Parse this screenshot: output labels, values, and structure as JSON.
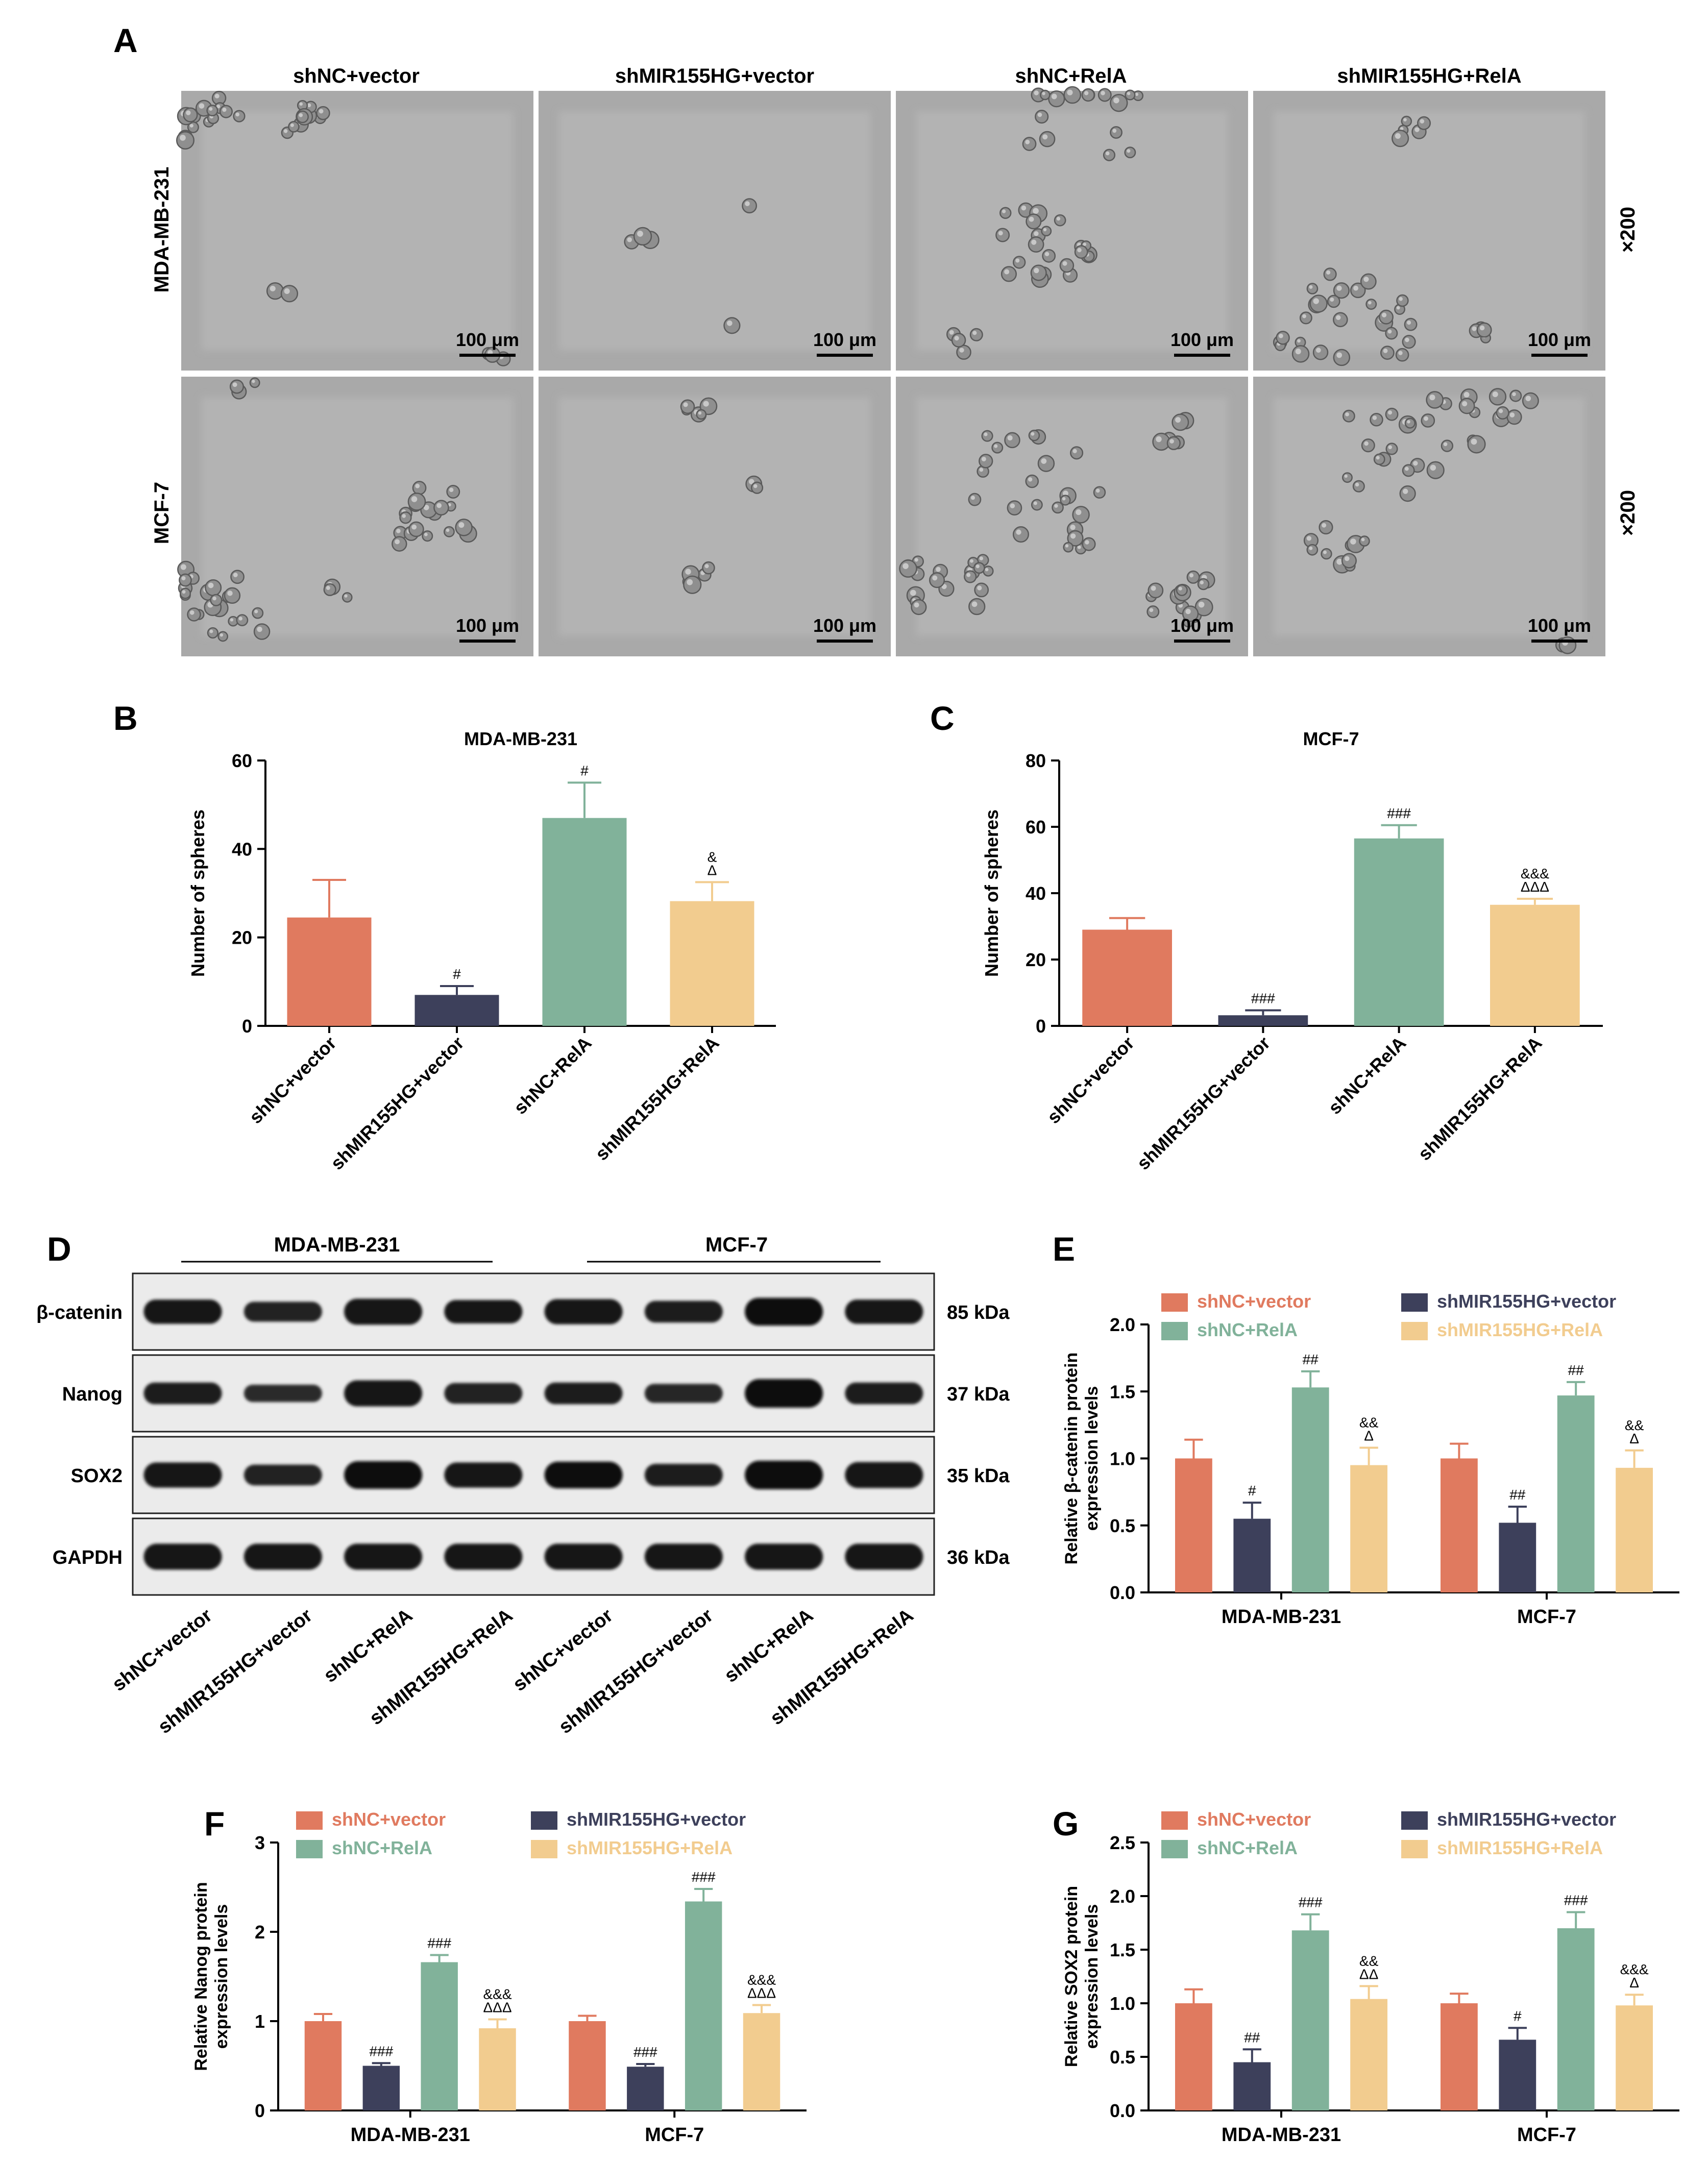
{
  "figure": {
    "panel_letters": [
      "A",
      "B",
      "C",
      "D",
      "E",
      "F",
      "G"
    ],
    "groups": [
      "shNC+vector",
      "shMIR155HG+vector",
      "shNC+RelA",
      "shMIR155HG+RelA"
    ],
    "colors": [
      "#E07A5F",
      "#3D405B",
      "#81B29A",
      "#F2CC8F"
    ],
    "legend_text_colors": [
      "#E07A5F",
      "#3D405B",
      "#81B29A",
      "#F2CC8F"
    ]
  },
  "panel_a": {
    "rows": [
      "MDA-MB-231",
      "MCF-7"
    ],
    "magnification": "×200",
    "scale_bar": "100 μm"
  },
  "panel_d": {
    "cell_lines": [
      "MDA-MB-231",
      "MCF-7"
    ],
    "proteins": [
      {
        "name": "β-catenin",
        "size": "85 kDa",
        "intensity": [
          0.75,
          0.5,
          0.85,
          0.7,
          0.8,
          0.6,
          0.95,
          0.75
        ]
      },
      {
        "name": "Nanog",
        "size": "37 kDa",
        "intensity": [
          0.6,
          0.35,
          0.85,
          0.55,
          0.6,
          0.45,
          1.0,
          0.6
        ]
      },
      {
        "name": "SOX2",
        "size": "35 kDa",
        "intensity": [
          0.8,
          0.55,
          0.95,
          0.8,
          0.9,
          0.65,
          1.0,
          0.85
        ]
      },
      {
        "name": "GAPDH",
        "size": "36 kDa",
        "intensity": [
          0.85,
          0.85,
          0.85,
          0.85,
          0.85,
          0.85,
          0.85,
          0.85
        ]
      }
    ],
    "lane_labels": [
      "shNC+vector",
      "shMIR155HG+vector",
      "shNC+RelA",
      "shMIR155HG+RelA",
      "shNC+vector",
      "shMIR155HG+vector",
      "shNC+RelA",
      "shMIR155HG+RelA"
    ]
  },
  "chart_data": [
    {
      "panel": "B",
      "type": "bar",
      "title": "MDA-MB-231",
      "ylabel": "Number of spheres",
      "ylim": [
        0,
        60
      ],
      "yticks": [
        0,
        20,
        40,
        60
      ],
      "categories": [
        "shNC+vector",
        "shMIR155HG+vector",
        "shNC+RelA",
        "shMIR155HG+RelA"
      ],
      "values": [
        24.5,
        7,
        47,
        28.2
      ],
      "errors": [
        8.5,
        2,
        8,
        4.3
      ],
      "annotations": [
        [],
        [
          "#"
        ],
        [
          "#"
        ],
        [
          "Δ",
          "&"
        ]
      ]
    },
    {
      "panel": "C",
      "type": "bar",
      "title": "MCF-7",
      "ylabel": "Number of spheres",
      "ylim": [
        0,
        80
      ],
      "yticks": [
        0,
        20,
        40,
        60,
        80
      ],
      "categories": [
        "shNC+vector",
        "shMIR155HG+vector",
        "shNC+RelA",
        "shMIR155HG+RelA"
      ],
      "values": [
        29,
        3.2,
        56.5,
        36.5
      ],
      "errors": [
        3.5,
        1.5,
        4,
        1.8
      ],
      "annotations": [
        [],
        [
          "###"
        ],
        [
          "###"
        ],
        [
          "ΔΔΔ",
          "&&&"
        ]
      ]
    },
    {
      "panel": "E",
      "type": "bar",
      "ylabel": [
        "Relative β-catenin protein",
        "expression levels"
      ],
      "ylim": [
        0,
        2.0
      ],
      "yticks": [
        0.0,
        0.5,
        1.0,
        1.5,
        2.0
      ],
      "tick_decimals": 1,
      "categories": [
        "MDA-MB-231",
        "MCF-7"
      ],
      "series": [
        {
          "name": "shNC+vector",
          "values": [
            1.0,
            1.0
          ],
          "errors": [
            0.14,
            0.11
          ],
          "annotations": [
            [],
            []
          ]
        },
        {
          "name": "shMIR155HG+vector",
          "values": [
            0.55,
            0.52
          ],
          "errors": [
            0.12,
            0.12
          ],
          "annotations": [
            [
              "#"
            ],
            [
              "##"
            ]
          ]
        },
        {
          "name": "shNC+RelA",
          "values": [
            1.53,
            1.47
          ],
          "errors": [
            0.12,
            0.1
          ],
          "annotations": [
            [
              "##"
            ],
            [
              "##"
            ]
          ]
        },
        {
          "name": "shMIR155HG+RelA",
          "values": [
            0.95,
            0.93
          ],
          "errors": [
            0.13,
            0.13
          ],
          "annotations": [
            [
              "Δ",
              "&&"
            ],
            [
              "Δ",
              "&&"
            ]
          ]
        }
      ]
    },
    {
      "panel": "F",
      "type": "bar",
      "ylabel": [
        "Relative Nanog protein",
        "expression levels"
      ],
      "ylim": [
        0,
        3
      ],
      "yticks": [
        0,
        1,
        2,
        3
      ],
      "tick_decimals": 0,
      "categories": [
        "MDA-MB-231",
        "MCF-7"
      ],
      "series": [
        {
          "name": "shNC+vector",
          "values": [
            1.0,
            1.0
          ],
          "errors": [
            0.08,
            0.06
          ],
          "annotations": [
            [],
            []
          ]
        },
        {
          "name": "shMIR155HG+vector",
          "values": [
            0.5,
            0.49
          ],
          "errors": [
            0.03,
            0.03
          ],
          "annotations": [
            [
              "###"
            ],
            [
              "###"
            ]
          ]
        },
        {
          "name": "shNC+RelA",
          "values": [
            1.66,
            2.34
          ],
          "errors": [
            0.08,
            0.14
          ],
          "annotations": [
            [
              "###"
            ],
            [
              "###"
            ]
          ]
        },
        {
          "name": "shMIR155HG+RelA",
          "values": [
            0.92,
            1.09
          ],
          "errors": [
            0.1,
            0.09
          ],
          "annotations": [
            [
              "ΔΔΔ",
              "&&&"
            ],
            [
              "ΔΔΔ",
              "&&&"
            ]
          ]
        }
      ]
    },
    {
      "panel": "G",
      "type": "bar",
      "ylabel": [
        "Relative SOX2 protein",
        "expression levels"
      ],
      "ylim": [
        0,
        2.5
      ],
      "yticks": [
        0.0,
        0.5,
        1.0,
        1.5,
        2.0,
        2.5
      ],
      "tick_decimals": 1,
      "categories": [
        "MDA-MB-231",
        "MCF-7"
      ],
      "series": [
        {
          "name": "shNC+vector",
          "values": [
            1.0,
            1.0
          ],
          "errors": [
            0.13,
            0.09
          ],
          "annotations": [
            [],
            []
          ]
        },
        {
          "name": "shMIR155HG+vector",
          "values": [
            0.45,
            0.66
          ],
          "errors": [
            0.12,
            0.11
          ],
          "annotations": [
            [
              "##"
            ],
            [
              "#"
            ]
          ]
        },
        {
          "name": "shNC+RelA",
          "values": [
            1.68,
            1.7
          ],
          "errors": [
            0.15,
            0.15
          ],
          "annotations": [
            [
              "###"
            ],
            [
              "###"
            ]
          ]
        },
        {
          "name": "shMIR155HG+RelA",
          "values": [
            1.04,
            0.98
          ],
          "errors": [
            0.12,
            0.1
          ],
          "annotations": [
            [
              "ΔΔ",
              "&&"
            ],
            [
              "Δ",
              "&&&"
            ]
          ]
        }
      ]
    }
  ]
}
